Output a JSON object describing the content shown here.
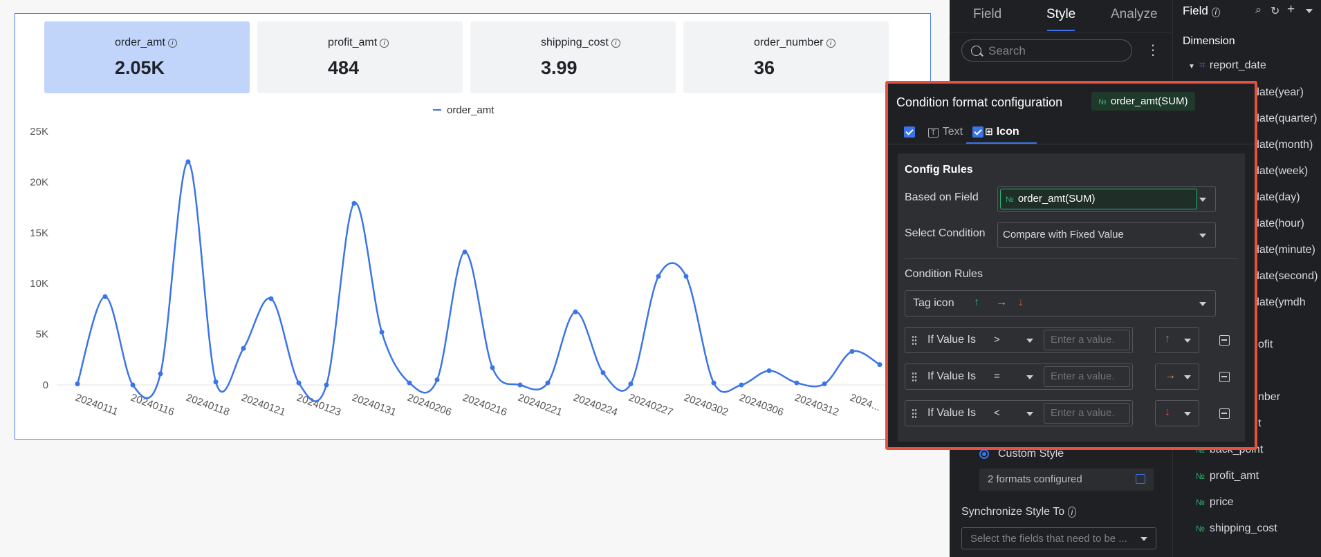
{
  "kpis": [
    {
      "name": "order_amt",
      "value": "2.05K"
    },
    {
      "name": "profit_amt",
      "value": "484"
    },
    {
      "name": "shipping_cost",
      "value": "3.99"
    },
    {
      "name": "order_number",
      "value": "36"
    }
  ],
  "chart_data": {
    "type": "line",
    "title": "",
    "series": [
      {
        "name": "order_amt",
        "color": "#3b74e8"
      }
    ],
    "ylim": [
      0,
      25000
    ],
    "yticks": [
      "25K",
      "20K",
      "15K",
      "10K",
      "5K",
      "0"
    ],
    "ytick_values": [
      25000,
      20000,
      15000,
      10000,
      5000,
      0
    ],
    "x_labels": [
      "20240111",
      "20240116",
      "20240118",
      "20240121",
      "20240123",
      "20240131",
      "20240206",
      "20240216",
      "20240221",
      "20240224",
      "20240227",
      "20240302",
      "20240306",
      "20240312",
      "2024..."
    ],
    "points": [
      {
        "x": 0,
        "y": 100
      },
      {
        "x": 0.5,
        "y": 8700
      },
      {
        "x": 1,
        "y": 0
      },
      {
        "x": 1.5,
        "y": 1100
      },
      {
        "x": 2,
        "y": 22000
      },
      {
        "x": 2.5,
        "y": 300
      },
      {
        "x": 3,
        "y": 3600
      },
      {
        "x": 3.5,
        "y": 8500
      },
      {
        "x": 4,
        "y": 200
      },
      {
        "x": 4.5,
        "y": 0
      },
      {
        "x": 5,
        "y": 17900
      },
      {
        "x": 5.5,
        "y": 5200
      },
      {
        "x": 6,
        "y": 200
      },
      {
        "x": 6.5,
        "y": 500
      },
      {
        "x": 7,
        "y": 13100
      },
      {
        "x": 7.5,
        "y": 1700
      },
      {
        "x": 8,
        "y": 0
      },
      {
        "x": 8.5,
        "y": 200
      },
      {
        "x": 9,
        "y": 7200
      },
      {
        "x": 9.5,
        "y": 1200
      },
      {
        "x": 10,
        "y": 100
      },
      {
        "x": 10.5,
        "y": 10700
      },
      {
        "x": 11,
        "y": 10700
      },
      {
        "x": 11.5,
        "y": 200
      },
      {
        "x": 12,
        "y": 0
      },
      {
        "x": 12.5,
        "y": 1400
      },
      {
        "x": 13,
        "y": 200
      },
      {
        "x": 13.5,
        "y": 100
      },
      {
        "x": 14,
        "y": 3300
      },
      {
        "x": 14.5,
        "y": 2000
      }
    ]
  },
  "style_panel": {
    "tabs": [
      "Field",
      "Style",
      "Analyze"
    ],
    "search_placeholder": "Search",
    "custom_style": "Custom Style",
    "formats_configured": "2 formats configured",
    "sync_label": "Synchronize Style To",
    "sync_placeholder": "Select the fields that need to be ..."
  },
  "field_panel": {
    "title": "Field",
    "dimension_label": "Dimension",
    "report_date": "report_date",
    "sub_fields": [
      "date(year)",
      "date(quarter)",
      "date(month)",
      "date(week)",
      "date(day)",
      "date(hour)",
      "date(minute)",
      "date(second)",
      "date(ymdh"
    ],
    "partial_fields": [
      "ofit",
      "nber",
      "t"
    ],
    "measures": [
      "back_point",
      "profit_amt",
      "price",
      "shipping_cost"
    ]
  },
  "dialog": {
    "title": "Condition format configuration",
    "field_tag": "order_amt(SUM)",
    "tab_text": "Text",
    "tab_icon": "Icon",
    "config_rules": "Config Rules",
    "based_on_label": "Based on Field",
    "based_on_value": "order_amt(SUM)",
    "select_condition_label": "Select Condition",
    "select_condition_value": "Compare with Fixed Value",
    "condition_rules_label": "Condition Rules",
    "tag_icon_label": "Tag icon",
    "rules": [
      {
        "label": "If Value Is",
        "op": ">",
        "placeholder": "Enter a value.",
        "icon": "↑",
        "color": "#2bb573"
      },
      {
        "label": "If Value Is",
        "op": "=",
        "placeholder": "Enter a value.",
        "icon": "→",
        "color": "#f5a623"
      },
      {
        "label": "If Value Is",
        "op": "<",
        "placeholder": "Enter a value.",
        "icon": "↓",
        "color": "#e84a3d"
      }
    ]
  },
  "colors": {
    "accent": "#3b74e8",
    "highlight": "#e6503e",
    "up": "#2bb573",
    "flat": "#f5a623",
    "down": "#e84a3d"
  }
}
